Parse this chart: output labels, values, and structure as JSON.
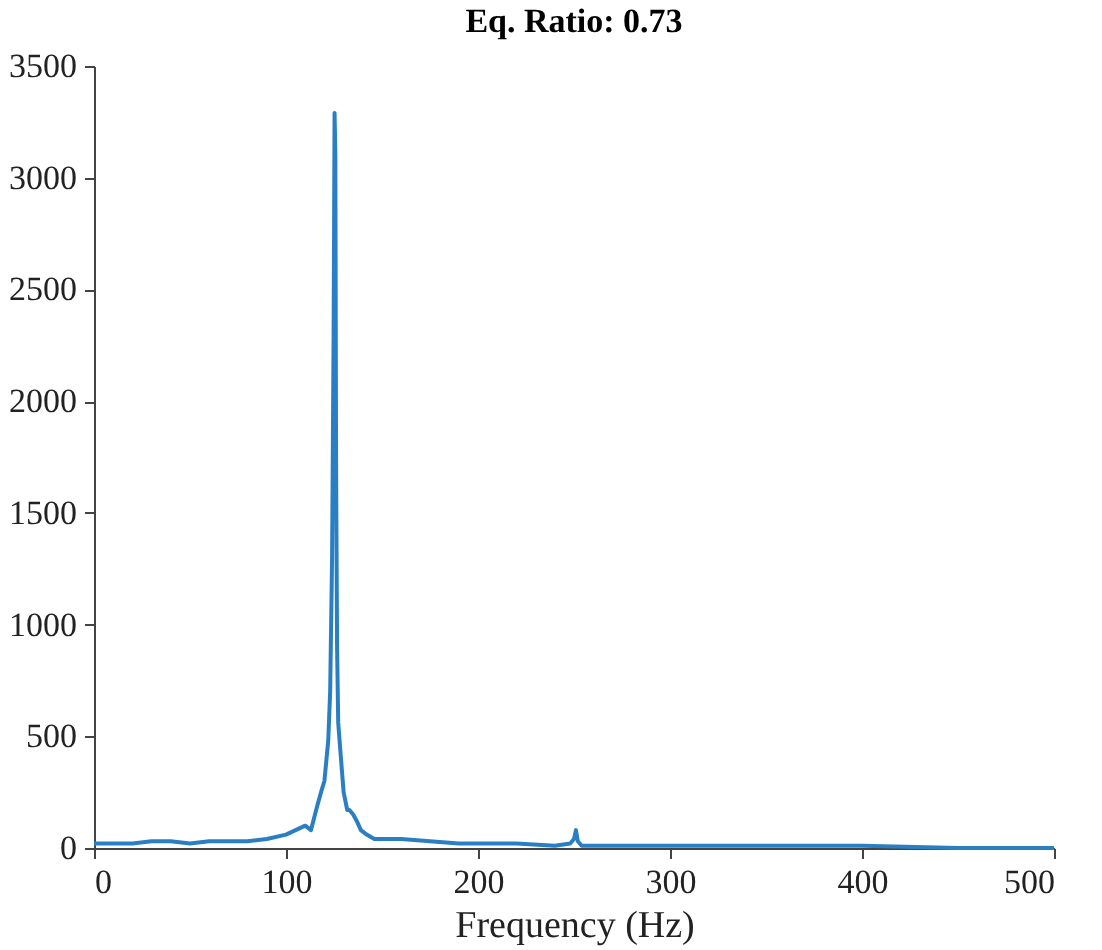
{
  "chart_data": {
    "type": "line",
    "title": "Eq. Ratio: 0.73",
    "xlabel": "Frequency (Hz)",
    "x": [
      0,
      10,
      20,
      30,
      40,
      50,
      60,
      70,
      80,
      90,
      100,
      105,
      110,
      113,
      116,
      118.6,
      120,
      122,
      123,
      124,
      124.8,
      125.3,
      125.7,
      126.1,
      126.6,
      127.2,
      128,
      129,
      130,
      131.9,
      133,
      135,
      136.9,
      139,
      142,
      146,
      150,
      160,
      175,
      190,
      200,
      220,
      240,
      248,
      250,
      251,
      252,
      254,
      260,
      280,
      300,
      350,
      400,
      450,
      500
    ],
    "series": [
      {
        "color": "#2a7fc4",
        "values": [
          20,
          20,
          20,
          30,
          30,
          20,
          30,
          30,
          30,
          40,
          60,
          80,
          100,
          80,
          180,
          260,
          300,
          480,
          700,
          1300,
          2300,
          3290,
          3100,
          1700,
          900,
          560,
          470,
          360,
          250,
          170,
          170,
          150,
          120,
          80,
          60,
          40,
          40,
          40,
          30,
          20,
          20,
          20,
          10,
          20,
          40,
          80,
          30,
          10,
          10,
          10,
          10,
          10,
          10,
          0,
          0
        ]
      }
    ],
    "xlim": [
      0,
      500
    ],
    "xticks": [
      0,
      100,
      200,
      300,
      400,
      500
    ],
    "ylim": [
      0,
      3500
    ],
    "yticks": [
      0,
      500,
      1000,
      1500,
      2000,
      2500,
      3000,
      3500
    ],
    "grid": false,
    "marker": "none",
    "line_style": "solid"
  }
}
